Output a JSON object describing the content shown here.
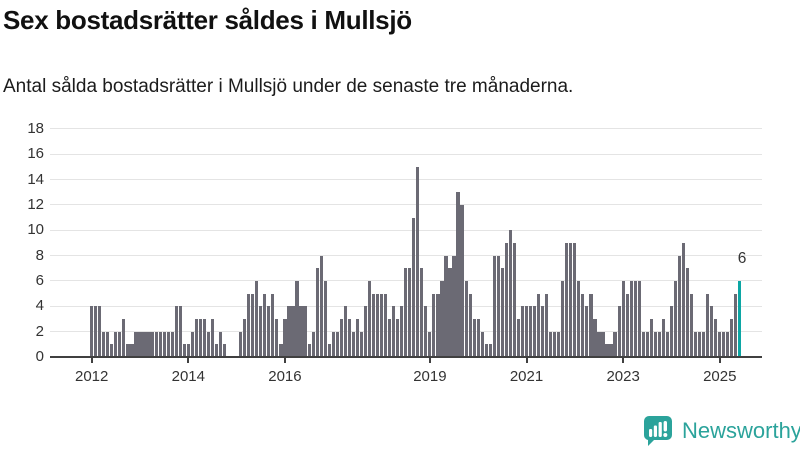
{
  "header": {
    "title": "Sex bostadsrätter såldes i Mullsjö",
    "subtitle": "Antal sålda bostadsrätter i Mullsjö under de senaste tre månaderna."
  },
  "annotation": {
    "text": "6"
  },
  "footer": {
    "brand": "Newsworthy",
    "logo_icon": "speech-bubble-bar-chart-icon"
  },
  "colors": {
    "bar": "#6b6a74",
    "highlight": "#0ca6a4",
    "grid": "#e4e4e4",
    "axis": "#404040",
    "tick_label": "#333333",
    "logo": "#2ba39b"
  },
  "chart_data": {
    "type": "bar",
    "title": "Sex bostadsrätter såldes i Mullsjö",
    "subtitle": "Antal sålda bostadsrätter i Mullsjö under de senaste tre månaderna.",
    "unit": "bostadsrätter (rullande tremånaderssumma)",
    "x_start": "2012-01",
    "x_end": "2025-06",
    "x_frequency": "monthly",
    "ylim": [
      0,
      18
    ],
    "grid": true,
    "legend": false,
    "y_ticks": [
      0,
      2,
      4,
      6,
      8,
      10,
      12,
      14,
      16,
      18
    ],
    "x_tick_labels": [
      "2012",
      "2014",
      "2016",
      "2019",
      "2021",
      "2023",
      "2025"
    ],
    "highlight_last_bar": true,
    "last_value": 6,
    "values": [
      4,
      4,
      4,
      2,
      2,
      1,
      2,
      2,
      3,
      1,
      1,
      2,
      2,
      2,
      2,
      2,
      2,
      2,
      2,
      2,
      2,
      4,
      4,
      1,
      1,
      2,
      3,
      3,
      3,
      2,
      3,
      1,
      2,
      1,
      0,
      0,
      0,
      2,
      3,
      5,
      5,
      6,
      4,
      5,
      4,
      5,
      3,
      1,
      3,
      4,
      4,
      6,
      4,
      4,
      1,
      2,
      7,
      8,
      6,
      1,
      2,
      2,
      3,
      4,
      3,
      2,
      3,
      2,
      4,
      6,
      5,
      5,
      5,
      5,
      3,
      4,
      3,
      4,
      7,
      7,
      11,
      15,
      7,
      4,
      2,
      5,
      5,
      6,
      8,
      7,
      8,
      13,
      12,
      6,
      5,
      3,
      3,
      2,
      1,
      1,
      8,
      8,
      7,
      9,
      10,
      9,
      3,
      4,
      4,
      4,
      4,
      5,
      4,
      5,
      2,
      2,
      2,
      6,
      9,
      9,
      9,
      6,
      5,
      4,
      5,
      3,
      2,
      2,
      1,
      1,
      2,
      4,
      6,
      5,
      6,
      6,
      6,
      2,
      2,
      3,
      2,
      2,
      3,
      2,
      4,
      6,
      8,
      9,
      7,
      5,
      2,
      2,
      2,
      5,
      4,
      3,
      2,
      2,
      2,
      3,
      5,
      6
    ]
  }
}
